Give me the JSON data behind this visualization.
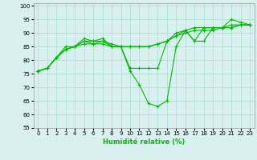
{
  "title": "",
  "xlabel": "Humidité relative (%)",
  "ylabel": "",
  "bg_color": "#d8f0f0",
  "grid_color": "#aaddcc",
  "line_color": "#00bb00",
  "xlim": [
    -0.5,
    23.5
  ],
  "ylim": [
    55,
    101
  ],
  "yticks": [
    55,
    60,
    65,
    70,
    75,
    80,
    85,
    90,
    95,
    100
  ],
  "xticks": [
    0,
    1,
    2,
    3,
    4,
    5,
    6,
    7,
    8,
    9,
    10,
    11,
    12,
    13,
    14,
    15,
    16,
    17,
    18,
    19,
    20,
    21,
    22,
    23
  ],
  "series": [
    [
      76,
      77,
      81,
      85,
      85,
      88,
      87,
      88,
      85,
      85,
      76,
      71,
      64,
      63,
      65,
      85,
      91,
      87,
      87,
      92,
      92,
      95,
      94,
      93
    ],
    [
      76,
      77,
      81,
      84,
      85,
      87,
      87,
      87,
      85,
      85,
      77,
      77,
      77,
      77,
      87,
      90,
      91,
      87,
      92,
      92,
      92,
      92,
      93,
      93
    ],
    [
      76,
      77,
      81,
      84,
      85,
      87,
      86,
      87,
      86,
      85,
      85,
      85,
      85,
      86,
      87,
      89,
      91,
      92,
      92,
      92,
      92,
      93,
      93,
      93
    ],
    [
      76,
      77,
      81,
      84,
      85,
      86,
      86,
      86,
      85,
      85,
      85,
      85,
      85,
      86,
      87,
      89,
      90,
      91,
      91,
      91,
      92,
      92,
      93,
      93
    ]
  ]
}
